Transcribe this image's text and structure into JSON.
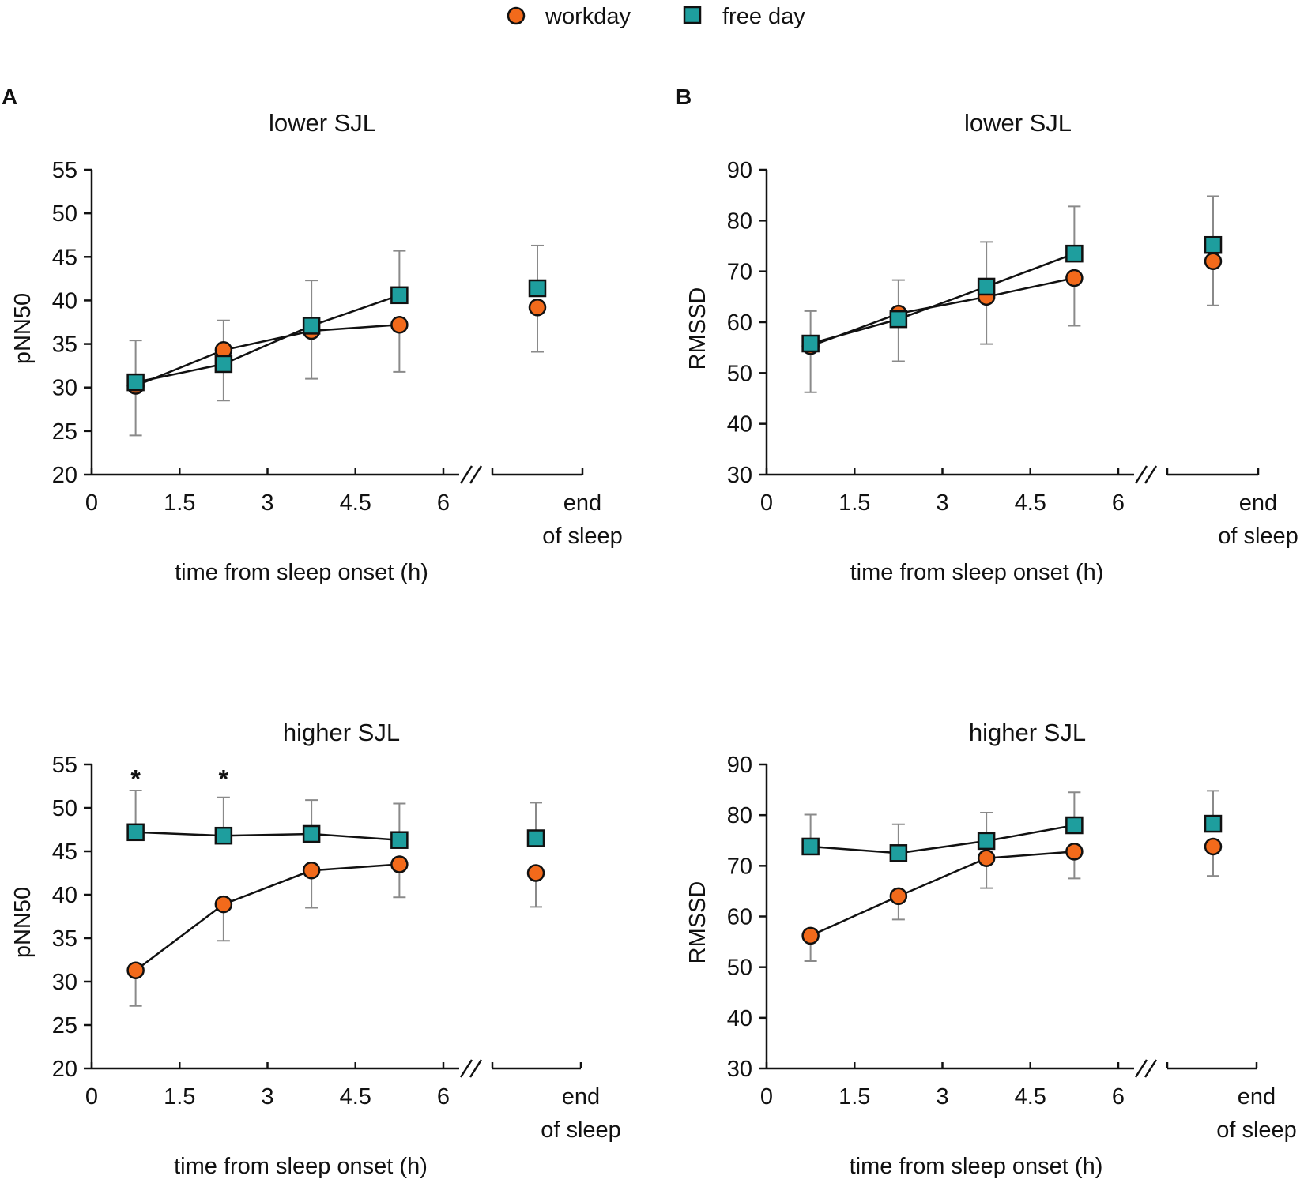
{
  "legend": [
    {
      "label": "workday",
      "marker": "circle",
      "color": "#F26A1B"
    },
    {
      "label": "free day",
      "marker": "square",
      "color": "#1E9E9E"
    }
  ],
  "colors": {
    "workday": "#F26A1B",
    "free_day": "#1E9E9E",
    "errorbar": "#8a8a8a",
    "axis": "#111111"
  },
  "chart_data": [
    {
      "id": "A-lower",
      "panel_letter": "A",
      "type": "line",
      "title": "lower SJL",
      "xlabel": "time from sleep onset (h)",
      "ylabel": "pNN50",
      "x_ticks": [
        "0",
        "1.5",
        "3",
        "4.5",
        "6"
      ],
      "x_end_label": [
        "end",
        "of sleep"
      ],
      "ylim": [
        20,
        55
      ],
      "y_ticks": [
        20,
        25,
        30,
        35,
        40,
        45,
        50,
        55
      ],
      "x": [
        0.75,
        2.25,
        3.75,
        5.25
      ],
      "series": [
        {
          "name": "workday",
          "values": [
            30.2,
            34.3,
            36.5,
            37.2
          ],
          "end_value": 39.2,
          "err_upper": [
            null,
            null,
            null,
            null
          ],
          "err_lower": [
            24.5,
            28.5,
            31.0,
            31.8
          ],
          "end_err_lower": 34.1
        },
        {
          "name": "free day",
          "values": [
            30.6,
            32.7,
            37.1,
            40.6
          ],
          "end_value": 41.4,
          "err_upper": [
            35.4,
            37.7,
            42.3,
            45.7
          ],
          "err_lower": [
            null,
            null,
            null,
            null
          ],
          "end_err_upper": 46.3
        }
      ],
      "annotations": []
    },
    {
      "id": "B-lower",
      "panel_letter": "B",
      "type": "line",
      "title": "lower SJL",
      "xlabel": "time from sleep onset (h)",
      "ylabel": "RMSSD",
      "x_ticks": [
        "0",
        "1.5",
        "3",
        "4.5",
        "6"
      ],
      "x_end_label": [
        "end",
        "of sleep"
      ],
      "ylim": [
        30,
        90
      ],
      "y_ticks": [
        30,
        40,
        50,
        60,
        70,
        80,
        90
      ],
      "x": [
        0.75,
        2.25,
        3.75,
        5.25
      ],
      "series": [
        {
          "name": "workday",
          "values": [
            55.3,
            61.7,
            65.0,
            68.7
          ],
          "end_value": 72.0,
          "err_upper": [
            null,
            null,
            null,
            null
          ],
          "err_lower": [
            46.2,
            52.3,
            55.7,
            59.3
          ],
          "end_err_lower": 63.3
        },
        {
          "name": "free day",
          "values": [
            55.8,
            60.6,
            67.0,
            73.5
          ],
          "end_value": 75.2,
          "err_upper": [
            62.2,
            68.3,
            75.8,
            82.8
          ],
          "err_lower": [
            null,
            null,
            null,
            null
          ],
          "end_err_upper": 84.8
        }
      ],
      "annotations": []
    },
    {
      "id": "A-higher",
      "panel_letter": "",
      "type": "line",
      "title": "higher SJL",
      "xlabel": "time from sleep onset (h)",
      "ylabel": "pNN50",
      "x_ticks": [
        "0",
        "1.5",
        "3",
        "4.5",
        "6"
      ],
      "x_end_label": [
        "end",
        "of sleep"
      ],
      "ylim": [
        20,
        55
      ],
      "y_ticks": [
        20,
        25,
        30,
        35,
        40,
        45,
        50,
        55
      ],
      "x": [
        0.75,
        2.25,
        3.75,
        5.25
      ],
      "series": [
        {
          "name": "workday",
          "values": [
            31.3,
            38.9,
            42.8,
            43.5
          ],
          "end_value": 42.5,
          "err_upper": [
            null,
            null,
            null,
            null
          ],
          "err_lower": [
            27.2,
            34.7,
            38.5,
            39.7
          ],
          "end_err_lower": 38.6
        },
        {
          "name": "free day",
          "values": [
            47.2,
            46.8,
            47.0,
            46.3
          ],
          "end_value": 46.5,
          "err_upper": [
            52.0,
            51.2,
            50.9,
            50.5
          ],
          "err_lower": [
            null,
            null,
            null,
            null
          ],
          "end_err_upper": 50.6
        }
      ],
      "annotations": [
        {
          "text": "*",
          "x": 0.75,
          "y": 54.5
        },
        {
          "text": "*",
          "x": 2.25,
          "y": 54.5
        }
      ]
    },
    {
      "id": "B-higher",
      "panel_letter": "",
      "type": "line",
      "title": "higher SJL",
      "xlabel": "time from sleep onset (h)",
      "ylabel": "RMSSD",
      "x_ticks": [
        "0",
        "1.5",
        "3",
        "4.5",
        "6"
      ],
      "x_end_label": [
        "end",
        "of sleep"
      ],
      "ylim": [
        30,
        90
      ],
      "y_ticks": [
        30,
        40,
        50,
        60,
        70,
        80,
        90
      ],
      "x": [
        0.75,
        2.25,
        3.75,
        5.25
      ],
      "series": [
        {
          "name": "workday",
          "values": [
            56.2,
            64.0,
            71.5,
            72.8
          ],
          "end_value": 73.8,
          "err_upper": [
            null,
            null,
            null,
            null
          ],
          "err_lower": [
            51.2,
            59.4,
            65.6,
            67.5
          ],
          "end_err_lower": 68.0
        },
        {
          "name": "free day",
          "values": [
            73.8,
            72.5,
            74.9,
            78.0
          ],
          "end_value": 78.3,
          "err_upper": [
            80.1,
            78.2,
            80.5,
            84.5
          ],
          "err_lower": [
            null,
            null,
            null,
            null
          ],
          "end_err_upper": 84.8
        }
      ],
      "annotations": []
    }
  ]
}
